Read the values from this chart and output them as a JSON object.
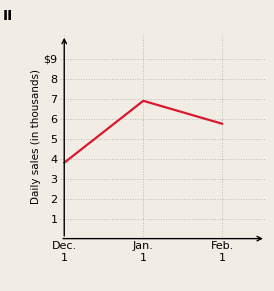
{
  "x_values": [
    0,
    1,
    2
  ],
  "y_values": [
    3.8,
    6.9,
    5.75
  ],
  "x_tick_labels": [
    "Dec.\n1",
    "Jan.\n1",
    "Feb.\n1"
  ],
  "y_tick_labels": [
    "$9",
    "8",
    "7",
    "6",
    "5",
    "4",
    "3",
    "2",
    "1"
  ],
  "y_ticks": [
    9,
    8,
    7,
    6,
    5,
    4,
    3,
    2,
    1
  ],
  "ylim": [
    0,
    10.2
  ],
  "xlim": [
    -0.05,
    2.55
  ],
  "line_color": "#d9182d",
  "line_width": 1.6,
  "grid_color": "#bbbbbb",
  "bg_color": "#f2ede4",
  "label_II": "II",
  "ylabel": "Daily sales (in thousands)",
  "label_II_fontsize": 10,
  "ylabel_fontsize": 7.5,
  "tick_fontsize": 8
}
